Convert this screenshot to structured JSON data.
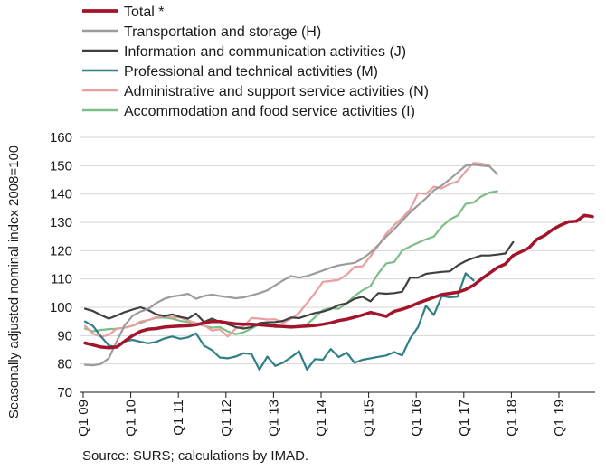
{
  "chart_data": {
    "type": "line",
    "ylabel": "Seasonally adjusted nominal index 2008=100",
    "xlabel": "",
    "source": "Source:  SURS; calculations by IMAD.",
    "ylim": [
      70,
      160
    ],
    "yticks": [
      70,
      80,
      90,
      100,
      110,
      120,
      130,
      140,
      150,
      160
    ],
    "grid": true,
    "legend_position": "top-left",
    "x_tick_labels": [
      "Q1 09",
      "Q1 10",
      "Q1 11",
      "Q1 12",
      "Q1 13",
      "Q1 14",
      "Q1 15",
      "Q1 16",
      "Q1 17",
      "Q1 18",
      "Q1 19"
    ],
    "x_start": "2009-01",
    "x_period": "month",
    "series": [
      {
        "name": "Total *",
        "color": "#a3142b",
        "width": 3.5,
        "values": [
          87.4,
          86.7,
          86,
          85.7,
          86,
          88,
          90,
          91.5,
          92.3,
          92.5,
          93,
          93.2,
          93.4,
          93.5,
          93.8,
          94.5,
          95,
          95,
          94.5,
          94.2,
          94,
          94,
          93.8,
          93.6,
          93.4,
          93.2,
          93,
          93.2,
          93.4,
          93.6,
          94,
          94.5,
          95.3,
          95.8,
          96.5,
          97.3,
          98.2,
          97.5,
          96.8,
          98.6,
          99.3,
          100.3,
          101.5,
          102.5,
          103.5,
          104.5,
          104.9,
          105.3,
          106.3,
          107.8,
          110,
          112,
          114,
          115.3,
          118.3,
          119.6,
          121,
          124,
          125.4,
          127.5,
          129,
          130.2,
          130.4,
          132.5,
          132
        ]
      },
      {
        "name": "Transportation and storage (H)",
        "color": "#9b9b9b",
        "width": 2.2,
        "values": [
          79.7,
          79.5,
          80,
          82,
          88,
          93.6,
          97,
          98.5,
          99.5,
          101.5,
          103,
          103.8,
          104.2,
          104.8,
          103,
          104,
          104.5,
          104,
          103.6,
          103.2,
          103.5,
          104.2,
          105,
          106,
          107.8,
          109.5,
          111,
          110.5,
          111,
          112,
          113,
          114,
          114.8,
          115.3,
          115.7,
          117.2,
          119.3,
          122,
          125,
          127.6,
          130.5,
          133.5,
          136,
          138.5,
          141.3,
          143,
          145.2,
          147.6,
          150,
          150.4,
          150,
          149.8,
          147
        ]
      },
      {
        "name": "Information and communication activities (J)",
        "color": "#3f3f3f",
        "width": 2.2,
        "values": [
          99.5,
          98.7,
          97.3,
          96,
          97.1,
          98.3,
          99.2,
          100,
          99,
          97.5,
          96.9,
          97.5,
          96.6,
          96,
          97.8,
          94.8,
          96,
          94.8,
          94,
          93,
          92.5,
          93,
          94.4,
          94.7,
          94.8,
          95.2,
          96.4,
          96.2,
          97.1,
          98,
          98.5,
          99.4,
          100.8,
          101.4,
          103,
          103.7,
          102.1,
          105,
          104.8,
          105,
          105.5,
          110.5,
          110.5,
          111.8,
          112.2,
          112.5,
          112.7,
          114.8,
          116.3,
          117.4,
          118.3,
          118.3,
          118.6,
          119,
          123
        ]
      },
      {
        "name": "Professional and technical activities (M)",
        "color": "#2f7f84",
        "width": 2.2,
        "values": [
          95,
          93.4,
          89.8,
          86.5,
          86,
          88,
          88.5,
          87.8,
          87.3,
          87.8,
          89,
          89.7,
          88.9,
          89.4,
          90.8,
          86.5,
          84.9,
          82.3,
          82,
          82.6,
          83.8,
          83.5,
          78,
          82.6,
          79.3,
          80.5,
          82.4,
          84.5,
          78,
          81.7,
          81.5,
          85.3,
          82.4,
          84,
          80.4,
          81.5,
          82,
          82.5,
          83,
          84.2,
          83,
          89,
          93,
          100.5,
          97.3,
          104,
          103.5,
          103.8,
          112,
          109.5
        ]
      },
      {
        "name": "Administrative and support service activities (N)",
        "color": "#e99fa0",
        "width": 2.2,
        "values": [
          93.4,
          90.7,
          89.6,
          90.2,
          92.5,
          92.8,
          93.5,
          95,
          95.5,
          96.5,
          97,
          96.5,
          96.4,
          95.3,
          94.4,
          93.7,
          91.8,
          92.2,
          89.7,
          92.5,
          93.3,
          96.2,
          96,
          95.7,
          95.8,
          94.5,
          96,
          98,
          101.5,
          105,
          109,
          109.3,
          109.7,
          111.5,
          114.3,
          114.5,
          118,
          121.8,
          126,
          129,
          131.5,
          134.5,
          140.3,
          140,
          142.6,
          142,
          143.5,
          144.5,
          148,
          151,
          150.7,
          150
        ]
      },
      {
        "name": "Accommodation and food service activities (I)",
        "color": "#7dbd86",
        "width": 2.2,
        "values": [
          92.5,
          91.5,
          92,
          92.3,
          92.4,
          92.8,
          93.5,
          94.5,
          95.5,
          96.3,
          96.4,
          96,
          95.2,
          94.7,
          94.3,
          93.5,
          92.8,
          93,
          91.5,
          90.5,
          91.2,
          92.5,
          94,
          94.3,
          93,
          93.3,
          93.3,
          92.9,
          94,
          96.5,
          99,
          99.7,
          99.5,
          101.5,
          104,
          106,
          107.5,
          112,
          115.5,
          116,
          120,
          121.5,
          122.8,
          124,
          125,
          128.5,
          131,
          132.4,
          136.5,
          137,
          139.2,
          140.5,
          141
        ]
      }
    ]
  }
}
